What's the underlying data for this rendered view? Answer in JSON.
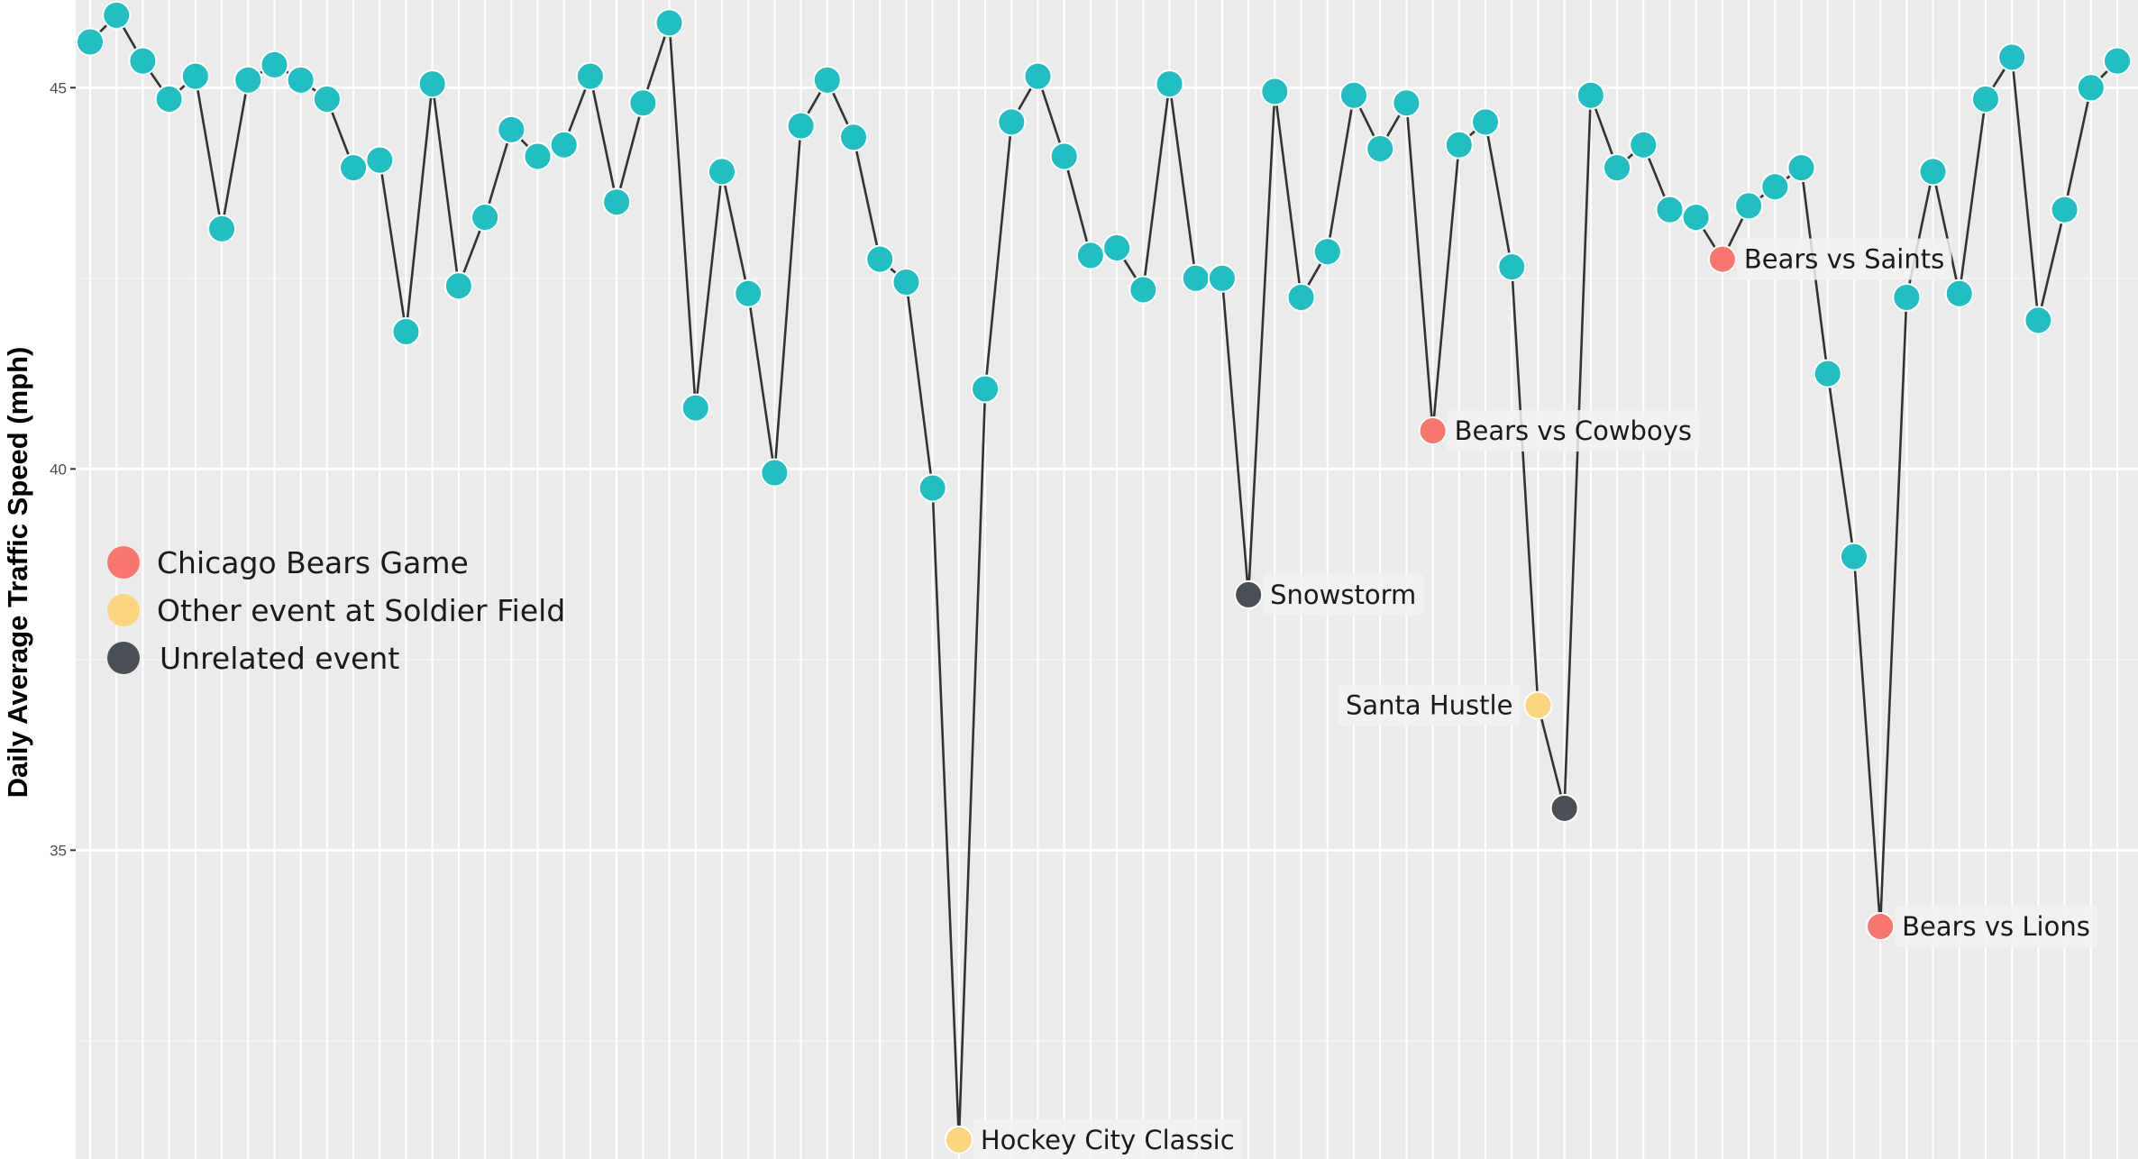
{
  "colors": {
    "panel": "#ebebeb",
    "grid_major": "#ffffff",
    "grid_minor": "#f4f4f4",
    "line": "#333333",
    "point_normal": "#1fbfc4",
    "bears": "#f8766d",
    "soldier_field": "#fdd57e",
    "unrelated": "#4a4f55"
  },
  "chart_data": {
    "type": "scatter",
    "ylabel": "Daily Average Traffic Speed (mph)",
    "xlabel": "",
    "ylim": [
      30.95,
      46.15
    ],
    "y_ticks": [
      35,
      40,
      45
    ],
    "y_tick_labels": [
      "35",
      "40",
      "45"
    ],
    "grid": true,
    "legend_position": "left",
    "legend": [
      {
        "label": "Chicago Bears Game",
        "category": "bears"
      },
      {
        "label": "Other event at Soldier Field",
        "category": "soldier_field"
      },
      {
        "label": "Unrelated event",
        "category": "unrelated"
      }
    ],
    "values": [
      45.6,
      45.95,
      45.35,
      44.85,
      45.15,
      43.15,
      45.1,
      45.3,
      45.1,
      44.85,
      43.95,
      44.05,
      41.8,
      45.05,
      42.4,
      43.3,
      44.45,
      44.1,
      44.25,
      45.15,
      43.5,
      44.8,
      45.85,
      40.8,
      43.9,
      42.3,
      39.95,
      44.5,
      45.1,
      44.35,
      42.75,
      42.45,
      39.75,
      31.2,
      41.05,
      44.55,
      45.15,
      44.1,
      42.8,
      42.9,
      42.35,
      45.05,
      42.5,
      42.5,
      38.35,
      44.95,
      42.25,
      42.85,
      44.9,
      44.2,
      44.8,
      40.5,
      44.25,
      44.55,
      42.65,
      36.9,
      35.55,
      44.9,
      43.95,
      44.25,
      43.4,
      43.3,
      42.75,
      43.45,
      43.7,
      43.95,
      41.25,
      38.85,
      34.0,
      42.25,
      43.9,
      42.3,
      44.85,
      45.4,
      41.95,
      43.4,
      45.0,
      45.35
    ],
    "highlights": [
      {
        "index": 33,
        "category": "soldier_field",
        "label": "Hockey City Classic"
      },
      {
        "index": 44,
        "category": "unrelated",
        "label": "Snowstorm"
      },
      {
        "index": 51,
        "category": "bears",
        "label": "Bears vs Cowboys"
      },
      {
        "index": 55,
        "category": "soldier_field",
        "label": "Santa Hustle"
      },
      {
        "index": 56,
        "category": "unrelated",
        "label": ""
      },
      {
        "index": 62,
        "category": "bears",
        "label": "Bears vs Saints"
      },
      {
        "index": 68,
        "category": "bears",
        "label": "Bears vs Lions"
      }
    ]
  }
}
